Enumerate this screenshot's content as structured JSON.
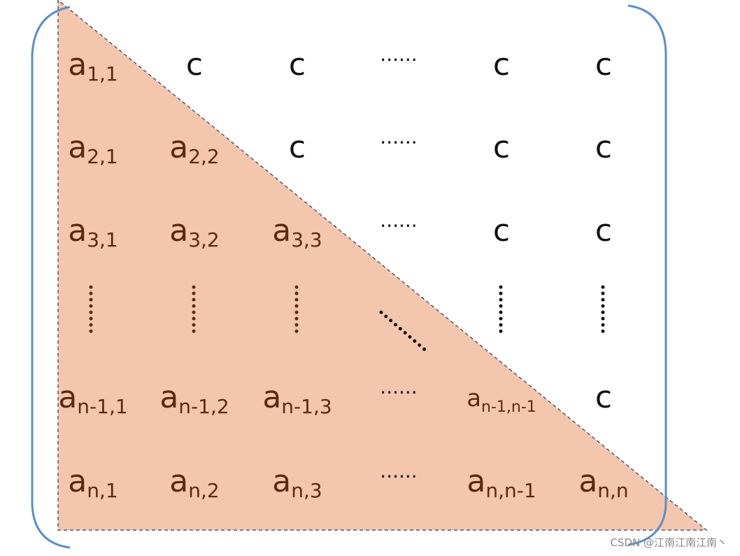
{
  "matrix": {
    "rows": [
      [
        {
          "text": "a",
          "sub": "1,1"
        },
        {
          "text": "c"
        },
        {
          "text": "c"
        },
        {
          "text": "······"
        },
        {
          "text": "c"
        },
        {
          "text": "c"
        }
      ],
      [
        {
          "text": "a",
          "sub": "2,1"
        },
        {
          "text": "a",
          "sub": "2,2"
        },
        {
          "text": "c"
        },
        {
          "text": "······"
        },
        {
          "text": "c"
        },
        {
          "text": "c"
        }
      ],
      [
        {
          "text": "a",
          "sub": "3,1"
        },
        {
          "text": "a",
          "sub": "3,2"
        },
        {
          "text": "a",
          "sub": "3,3"
        },
        {
          "text": "······"
        },
        {
          "text": "c"
        },
        {
          "text": "c"
        }
      ],
      [
        {
          "text": "a",
          "sub": "n-1,1"
        },
        {
          "text": "a",
          "sub": "n-1,2"
        },
        {
          "text": "a",
          "sub": "n-1,3"
        },
        {
          "text": "······"
        },
        {
          "text": "a",
          "sub": "n-1,n-1"
        },
        {
          "text": "c"
        }
      ],
      [
        {
          "text": "a",
          "sub": "n,1"
        },
        {
          "text": "a",
          "sub": "n,2"
        },
        {
          "text": "a",
          "sub": "n,3"
        },
        {
          "text": "······"
        },
        {
          "text": "a",
          "sub": "n,n-1"
        },
        {
          "text": "a",
          "sub": "n,n"
        }
      ]
    ]
  },
  "watermark": "CSDN @江南江南江南丶"
}
